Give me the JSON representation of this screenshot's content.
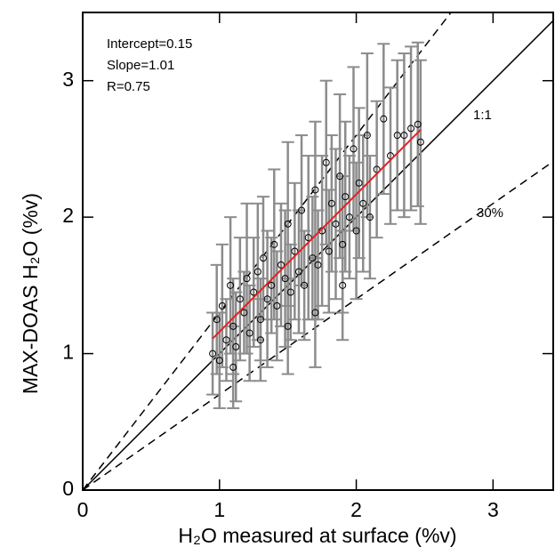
{
  "chart_data": {
    "type": "scatter",
    "x_label": "H₂O measured at surface (%v)",
    "y_label": "MAX-DOAS H₂O (%v)",
    "annotations": [
      "Intercept=0.15",
      "Slope=1.01",
      "R=0.75"
    ],
    "xlim": [
      0,
      3.44
    ],
    "ylim": [
      0,
      3.5
    ],
    "xticks": [
      0,
      1,
      2,
      3
    ],
    "yticks": [
      0,
      1,
      2,
      3
    ],
    "series": [
      {
        "color": "#000000",
        "error_color": "#8c8c8c",
        "x": [
          0.95,
          0.98,
          1.0,
          1.02,
          1.05,
          1.08,
          1.1,
          1.12,
          1.15,
          1.18,
          1.2,
          1.22,
          1.25,
          1.28,
          1.3,
          1.32,
          1.35,
          1.38,
          1.4,
          1.42,
          1.45,
          1.48,
          1.5,
          1.52,
          1.55,
          1.58,
          1.6,
          1.62,
          1.65,
          1.68,
          1.7,
          1.72,
          1.75,
          1.78,
          1.8,
          1.82,
          1.85,
          1.88,
          1.9,
          1.92,
          1.95,
          1.98,
          2.0,
          2.02,
          2.05,
          2.08,
          2.1,
          2.15,
          2.2,
          2.25,
          2.3,
          2.35,
          2.4,
          2.45,
          2.47,
          1.3,
          1.5,
          1.7,
          1.9,
          1.1
        ],
        "values": [
          1.0,
          1.25,
          0.95,
          1.35,
          1.1,
          1.5,
          1.2,
          1.05,
          1.4,
          1.3,
          1.55,
          1.15,
          1.45,
          1.6,
          1.25,
          1.7,
          1.4,
          1.5,
          1.8,
          1.35,
          1.65,
          1.55,
          1.95,
          1.45,
          1.75,
          1.6,
          2.05,
          1.5,
          1.85,
          1.7,
          2.2,
          1.65,
          1.9,
          2.4,
          1.75,
          2.1,
          1.95,
          2.3,
          1.8,
          2.15,
          2.0,
          2.5,
          1.9,
          2.25,
          2.1,
          2.6,
          2.0,
          2.35,
          2.72,
          2.45,
          2.6,
          2.6,
          2.65,
          2.68,
          2.55,
          1.1,
          1.2,
          1.3,
          1.5,
          0.9
        ],
        "errors": [
          0.3,
          0.4,
          0.35,
          0.45,
          0.3,
          0.5,
          0.35,
          0.4,
          0.45,
          0.3,
          0.55,
          0.35,
          0.4,
          0.5,
          0.3,
          0.45,
          0.5,
          0.35,
          0.55,
          0.4,
          0.45,
          0.5,
          0.6,
          0.35,
          0.5,
          0.45,
          0.55,
          0.4,
          0.6,
          0.45,
          0.5,
          0.4,
          0.55,
          0.6,
          0.45,
          0.5,
          0.55,
          0.6,
          0.5,
          0.55,
          0.45,
          0.6,
          0.5,
          0.55,
          0.5,
          0.6,
          0.45,
          0.5,
          0.55,
          0.5,
          0.55,
          0.6,
          0.6,
          0.6,
          0.6,
          0.3,
          0.35,
          0.4,
          0.4,
          0.3
        ]
      }
    ],
    "fit": {
      "color": "#e8211d",
      "x": [
        0.95,
        2.47
      ],
      "y": [
        1.11,
        2.64
      ]
    },
    "reference_lines": [
      {
        "label": "1:1",
        "slope": 1,
        "dash": false
      },
      {
        "label": "30%",
        "slope": 0.7,
        "dash": true
      },
      {
        "slope": 1.3,
        "dash": true
      }
    ]
  }
}
